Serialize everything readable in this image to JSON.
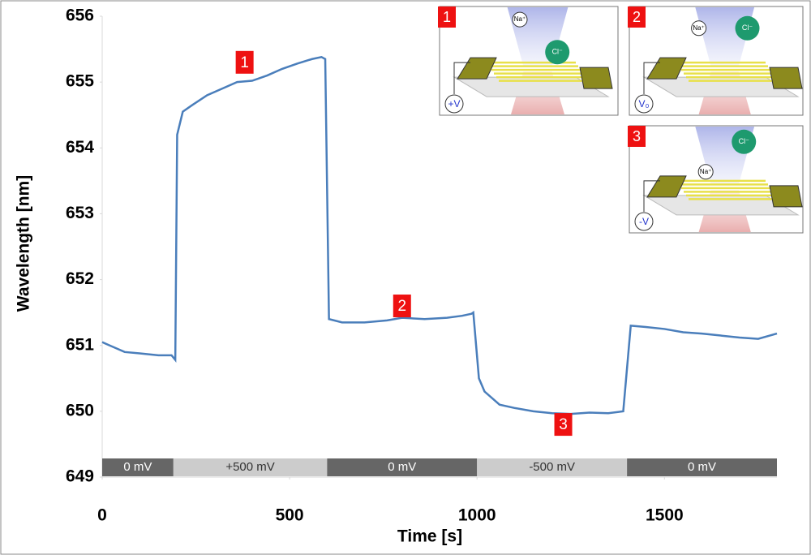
{
  "chart_data": {
    "type": "line",
    "x_label": "Time [s]",
    "y_label": "Wavelength [nm]",
    "x": [
      0,
      20,
      40,
      60,
      100,
      150,
      185,
      195,
      200,
      215,
      240,
      280,
      320,
      360,
      400,
      440,
      480,
      520,
      560,
      585,
      595,
      605,
      640,
      700,
      760,
      800,
      860,
      920,
      960,
      985,
      990,
      1005,
      1020,
      1060,
      1100,
      1150,
      1200,
      1250,
      1300,
      1350,
      1390,
      1410,
      1450,
      1500,
      1550,
      1600,
      1650,
      1700,
      1750,
      1800
    ],
    "values": [
      651.05,
      651.0,
      650.95,
      650.9,
      650.88,
      650.85,
      650.85,
      650.78,
      654.2,
      654.55,
      654.65,
      654.8,
      654.9,
      655.0,
      655.02,
      655.1,
      655.2,
      655.28,
      655.35,
      655.38,
      655.35,
      651.4,
      651.35,
      651.35,
      651.38,
      651.42,
      651.4,
      651.42,
      651.45,
      651.48,
      651.5,
      650.5,
      650.3,
      650.1,
      650.05,
      650.0,
      649.97,
      649.96,
      649.98,
      649.97,
      650.0,
      651.3,
      651.28,
      651.25,
      651.2,
      651.18,
      651.15,
      651.12,
      651.1,
      651.18
    ],
    "color": "#4a7ebb",
    "xlim": [
      0,
      1800
    ],
    "xticks": [
      0,
      500,
      1000,
      1500
    ],
    "ylim": [
      649,
      656
    ],
    "yticks": [
      649,
      650,
      651,
      652,
      653,
      654,
      655,
      656
    ],
    "phases": [
      {
        "label": "0 mV",
        "start": 0,
        "end": 190,
        "color": "#666666"
      },
      {
        "label": "+500 mV",
        "start": 190,
        "end": 600,
        "color": "#cccccc"
      },
      {
        "label": "0 mV",
        "start": 600,
        "end": 1000,
        "color": "#666666"
      },
      {
        "label": "-500 mV",
        "start": 1000,
        "end": 1400,
        "color": "#cccccc"
      },
      {
        "label": "0 mV",
        "start": 1400,
        "end": 1800,
        "color": "#666666"
      }
    ],
    "annotations": [
      {
        "text": "1",
        "x": 380,
        "y": 655.3
      },
      {
        "text": "2",
        "x": 800,
        "y": 651.6
      },
      {
        "text": "3",
        "x": 1230,
        "y": 649.8
      }
    ]
  },
  "insets": [
    {
      "number": "1",
      "potential": "+V",
      "cation": "Na⁺",
      "anion": "Cl⁻"
    },
    {
      "number": "2",
      "potential": "V₀",
      "cation": "Na⁺",
      "anion": "Cl⁻"
    },
    {
      "number": "3",
      "potential": "-V",
      "cation": "Na⁺",
      "anion": "Cl⁻"
    }
  ]
}
